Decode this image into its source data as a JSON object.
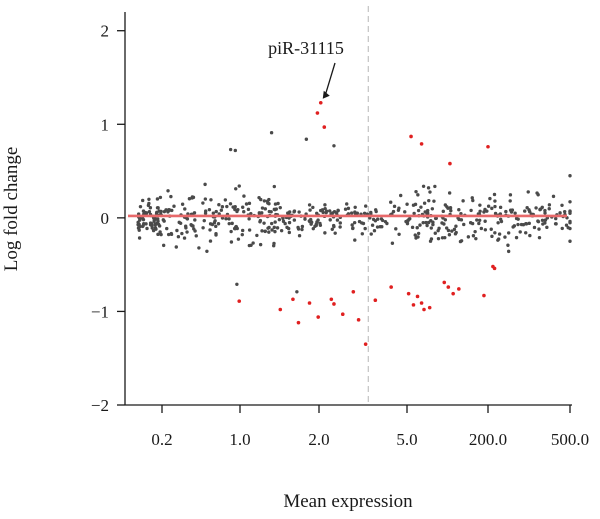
{
  "chart_data": {
    "type": "scatter",
    "title": "",
    "xlabel": "Mean expression",
    "ylabel": "Log fold change",
    "x_tick_labels": [
      "0.2",
      "1.0",
      "2.0",
      "5.0",
      "200.0",
      "500.0"
    ],
    "y_ticks": [
      -2,
      -1,
      0,
      1,
      2
    ],
    "ylim": [
      -2,
      2.2
    ],
    "grid": false,
    "reference_line": {
      "y": 0.02,
      "color": "#e8696a"
    },
    "threshold_line": {
      "x_between_ticks": [
        "2.0",
        "5.0"
      ],
      "style": "dashed",
      "color": "#bdbdbd"
    },
    "annotation": {
      "text": "piR-31115",
      "target_series": "significant",
      "target_index": 0
    },
    "series": [
      {
        "color": "#4a4a4a",
        "points": []
      },
      {
        "color": "#e02020",
        "points": []
      }
    ]
  }
}
